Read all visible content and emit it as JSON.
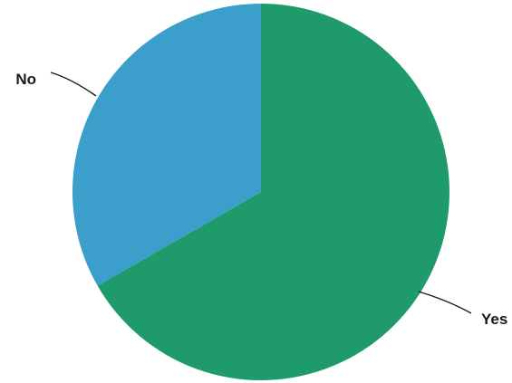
{
  "chart_data": {
    "type": "pie",
    "title": "",
    "slices": [
      {
        "label": "Yes",
        "value": 66.7,
        "color": "#1f9a6a"
      },
      {
        "label": "No",
        "value": 33.3,
        "color": "#3c9fcb"
      }
    ],
    "start": "12 o'clock",
    "direction": "clockwise",
    "legend": "none",
    "label_style": "outside labels with leader lines"
  }
}
